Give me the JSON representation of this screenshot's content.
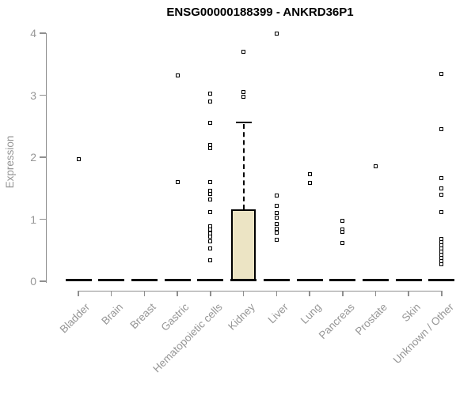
{
  "chart_data": {
    "type": "boxplot",
    "title": "ENSG00000188399 - ANKRD36P1",
    "ylabel": "Expression",
    "xlabel": "",
    "ylim": [
      0,
      4
    ],
    "yticks": [
      0,
      1,
      2,
      3,
      4
    ],
    "grid": false,
    "legend": null,
    "colors": {
      "box_fill": "#ECE4C4",
      "box_border": "#000000",
      "median": "#000000",
      "marker": "#000000",
      "axis": "#8f8f8f",
      "tick_label": "#969696",
      "title": "#000000"
    },
    "categories": [
      "Bladder",
      "Brain",
      "Breast",
      "Gastric",
      "Hematopoietic cells",
      "Kidney",
      "Liver",
      "Lung",
      "Pancreas",
      "Prostate",
      "Skin",
      "Unknown / Other"
    ],
    "boxes": [
      {
        "category": "Bladder",
        "whisker_low": 0,
        "q1": 0,
        "median": 0,
        "q3": 0,
        "whisker_high": 0,
        "outliers": [
          1.97
        ]
      },
      {
        "category": "Brain",
        "whisker_low": 0,
        "q1": 0,
        "median": 0,
        "q3": 0,
        "whisker_high": 0,
        "outliers": []
      },
      {
        "category": "Breast",
        "whisker_low": 0,
        "q1": 0,
        "median": 0,
        "q3": 0,
        "whisker_high": 0,
        "outliers": []
      },
      {
        "category": "Gastric",
        "whisker_low": 0,
        "q1": 0,
        "median": 0,
        "q3": 0,
        "whisker_high": 0,
        "outliers": [
          3.32,
          1.6
        ]
      },
      {
        "category": "Hematopoietic cells",
        "whisker_low": 0,
        "q1": 0,
        "median": 0,
        "q3": 0,
        "whisker_high": 0,
        "outliers": [
          3.03,
          2.9,
          2.56,
          2.2,
          2.15,
          1.6,
          1.46,
          1.41,
          1.32,
          1.12,
          0.88,
          0.83,
          0.77,
          0.72,
          0.64,
          0.53,
          0.34
        ]
      },
      {
        "category": "Kidney",
        "whisker_low": 0,
        "q1": 0,
        "median": 0,
        "q3": 1.16,
        "whisker_high": 2.56,
        "outliers": [
          3.7,
          3.05,
          2.98
        ]
      },
      {
        "category": "Liver",
        "whisker_low": 0,
        "q1": 0,
        "median": 0,
        "q3": 0,
        "whisker_high": 0,
        "outliers": [
          4.0,
          1.38,
          1.22,
          1.1,
          1.02,
          0.92,
          0.85,
          0.78,
          0.67
        ]
      },
      {
        "category": "Lung",
        "whisker_low": 0,
        "q1": 0,
        "median": 0,
        "q3": 0,
        "whisker_high": 0,
        "outliers": [
          1.72,
          1.59
        ]
      },
      {
        "category": "Pancreas",
        "whisker_low": 0,
        "q1": 0,
        "median": 0,
        "q3": 0,
        "whisker_high": 0,
        "outliers": [
          0.98,
          0.84,
          0.79,
          0.62
        ]
      },
      {
        "category": "Prostate",
        "whisker_low": 0,
        "q1": 0,
        "median": 0,
        "q3": 0,
        "whisker_high": 0,
        "outliers": [
          1.85
        ]
      },
      {
        "category": "Skin",
        "whisker_low": 0,
        "q1": 0,
        "median": 0,
        "q3": 0,
        "whisker_high": 0,
        "outliers": []
      },
      {
        "category": "Unknown / Other",
        "whisker_low": 0,
        "q1": 0,
        "median": 0,
        "q3": 0,
        "whisker_high": 0,
        "outliers": [
          3.34,
          2.45,
          1.66,
          1.5,
          1.4,
          1.11,
          0.68,
          0.63,
          0.58,
          0.53,
          0.48,
          0.43,
          0.38,
          0.33,
          0.27
        ]
      }
    ]
  }
}
